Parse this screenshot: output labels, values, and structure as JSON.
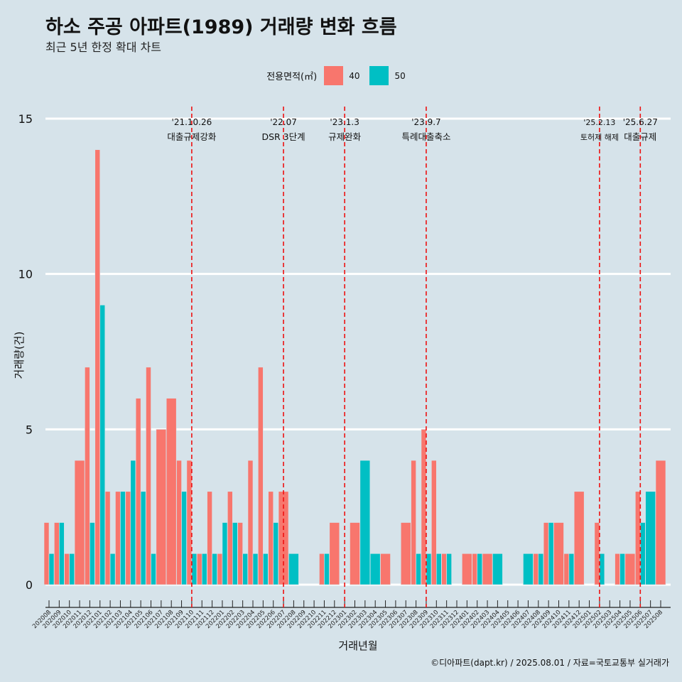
{
  "chart_data": {
    "type": "bar",
    "title": "하소 주공 아파트(1989) 거래량 변화 흐름",
    "subtitle": "최근 5년 한정 확대 차트",
    "xlabel": "거래년월",
    "ylabel": "거래량(건)",
    "ylim": [
      0,
      15
    ],
    "yticks": [
      0,
      5,
      10,
      15
    ],
    "grid": "horizontal",
    "legend_title": "전용면적(㎡)",
    "legend_position": "top",
    "caption": "©디아파트(dapt.kr) / 2025.08.01 / 자료=국토교통부 실거래가",
    "categories": [
      "202008",
      "202009",
      "202010",
      "202011",
      "202012",
      "202101",
      "202102",
      "202103",
      "202104",
      "202105",
      "202106",
      "202107",
      "202108",
      "202109",
      "202110",
      "202111",
      "202112",
      "202201",
      "202202",
      "202203",
      "202204",
      "202205",
      "202206",
      "202207",
      "202208",
      "202209",
      "202210",
      "202211",
      "202212",
      "202301",
      "202302",
      "202303",
      "202304",
      "202305",
      "202306",
      "202307",
      "202308",
      "202309",
      "202310",
      "202311",
      "202312",
      "202401",
      "202402",
      "202403",
      "202404",
      "202405",
      "202406",
      "202407",
      "202408",
      "202409",
      "202410",
      "202411",
      "202412",
      "202501",
      "202502",
      "202503",
      "202504",
      "202505",
      "202506",
      "202507",
      "202508"
    ],
    "series": [
      {
        "name": "40",
        "color": "#f8766d",
        "values": [
          2,
          2,
          1,
          4,
          7,
          14,
          3,
          3,
          3,
          6,
          7,
          5,
          6,
          4,
          4,
          1,
          3,
          1,
          3,
          2,
          4,
          7,
          3,
          3,
          0,
          0,
          0,
          1,
          2,
          0,
          2,
          0,
          0,
          1,
          0,
          2,
          4,
          5,
          4,
          1,
          0,
          1,
          1,
          1,
          0,
          0,
          0,
          0,
          1,
          2,
          2,
          1,
          3,
          0,
          2,
          0,
          1,
          1,
          3,
          0,
          4
        ]
      },
      {
        "name": "50",
        "color": "#00bfc4",
        "values": [
          1,
          2,
          1,
          0,
          2,
          9,
          1,
          3,
          4,
          3,
          1,
          0,
          0,
          3,
          1,
          1,
          1,
          2,
          2,
          1,
          1,
          1,
          2,
          0,
          1,
          0,
          0,
          1,
          0,
          0,
          0,
          4,
          1,
          0,
          0,
          0,
          1,
          1,
          1,
          1,
          0,
          0,
          1,
          0,
          1,
          0,
          0,
          1,
          1,
          2,
          0,
          1,
          0,
          0,
          1,
          0,
          1,
          0,
          2,
          3,
          0
        ]
      }
    ],
    "events": [
      {
        "x": "202110",
        "date": "'21.10.26",
        "label": "대출규제강화"
      },
      {
        "x": "202207",
        "date": "'22.07",
        "label": "DSR 3단계"
      },
      {
        "x": "202301",
        "date": "'23.1.3",
        "label": "규제완화"
      },
      {
        "x": "202309",
        "date": "'23.9.7",
        "label": "특례대출축소"
      },
      {
        "x": "202502",
        "date": "'25.2.13",
        "label": "토허제 해제"
      },
      {
        "x": "202506",
        "date": "'25.6.27",
        "label": "대출규제"
      }
    ]
  }
}
